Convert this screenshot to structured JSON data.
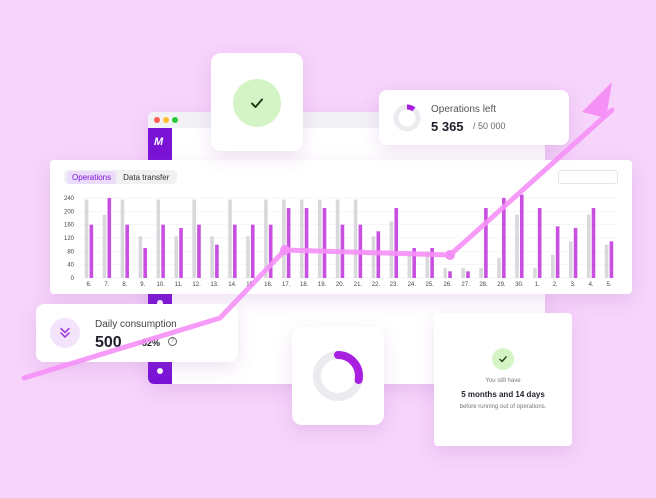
{
  "app": {
    "logo": "M",
    "window_dots": [
      "#ff5f57",
      "#febc2e",
      "#28c840"
    ]
  },
  "chart_tabs": {
    "tabs": [
      {
        "label": "Operations",
        "active": true
      },
      {
        "label": "Data transfer",
        "active": false
      }
    ]
  },
  "chart_data": {
    "type": "bar",
    "ylim": [
      0,
      240
    ],
    "yticks": [
      0,
      40,
      80,
      120,
      160,
      200,
      240
    ],
    "categories": [
      "6.",
      "7.",
      "8.",
      "9.",
      "10.",
      "11.",
      "12.",
      "13.",
      "14.",
      "15.",
      "16.",
      "17.",
      "18.",
      "19.",
      "20.",
      "21.",
      "22.",
      "23.",
      "24.",
      "25.",
      "26.",
      "27.",
      "28.",
      "29.",
      "30.",
      "1.",
      "2.",
      "3.",
      "4.",
      "5."
    ],
    "series": [
      {
        "color": "#d9d9dd",
        "values": [
          235,
          190,
          235,
          125,
          235,
          125,
          235,
          125,
          235,
          125,
          235,
          235,
          235,
          235,
          235,
          235,
          125,
          170,
          80,
          80,
          30,
          30,
          30,
          60,
          190,
          30,
          70,
          110,
          190,
          100
        ]
      },
      {
        "color": "#c84fe0",
        "values": [
          160,
          240,
          160,
          90,
          160,
          150,
          160,
          100,
          160,
          160,
          160,
          210,
          210,
          210,
          160,
          160,
          140,
          210,
          90,
          90,
          20,
          20,
          210,
          240,
          250,
          210,
          155,
          150,
          210,
          110
        ]
      }
    ]
  },
  "success_card": {
    "icon": "check-icon",
    "color": "#d4f4c6"
  },
  "operations_left": {
    "label": "Operations left",
    "value": "5 365",
    "total": "/ 50 000",
    "fraction": 0.107
  },
  "daily_consumption": {
    "label": "Daily consumption",
    "value": "500",
    "change": "-52%",
    "help": "?"
  },
  "donut": {
    "fraction": 0.28,
    "color": "#a81fe0"
  },
  "time_left": {
    "line1": "You still have",
    "line2": "5 months and 14 days",
    "line3": "before running out of operations."
  },
  "colors": {
    "accent": "#7a13d6",
    "bar_purple": "#c84fe0",
    "bar_grey": "#d9d9dd",
    "trend": "#f590f7"
  }
}
